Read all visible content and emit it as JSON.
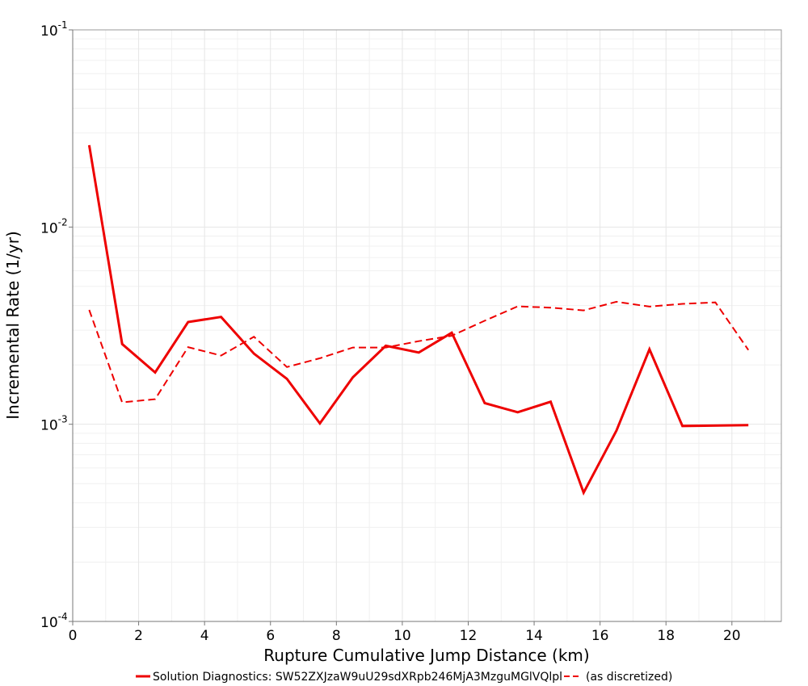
{
  "chart_data": {
    "type": "line",
    "title": "",
    "xlabel": "Rupture Cumulative Jump Distance (km)",
    "ylabel": "Incremental Rate (1/yr)",
    "xlim": [
      0,
      21.5
    ],
    "ylim": [
      0.0001,
      0.1
    ],
    "yscale": "log",
    "x_ticks": [
      "0",
      "2",
      "4",
      "6",
      "8",
      "10",
      "12",
      "14",
      "16",
      "18",
      "20"
    ],
    "y_ticks": [
      {
        "base": "10",
        "exp": "-4"
      },
      {
        "base": "10",
        "exp": "-3"
      },
      {
        "base": "10",
        "exp": "-2"
      },
      {
        "base": "10",
        "exp": "-1"
      }
    ],
    "grid": true,
    "legend_position": "bottom",
    "x": [
      0.5,
      1.5,
      2.5,
      3.5,
      4.5,
      5.5,
      6.5,
      7.5,
      8.5,
      9.5,
      10.5,
      11.5,
      12.5,
      13.5,
      14.5,
      15.5,
      16.5,
      17.5,
      18.5,
      19.5,
      20.5
    ],
    "series": [
      {
        "name": "Solution Diagnostics: SW52ZXJzaW9uU29sdXRpb246MjA3MzguMGlVQlpl",
        "style": "solid",
        "color": "#ee0000",
        "values": [
          0.026,
          0.00255,
          0.00183,
          0.0033,
          0.0035,
          0.00228,
          0.0017,
          0.00101,
          0.00173,
          0.0025,
          0.00231,
          0.00291,
          0.00128,
          0.00115,
          0.0013,
          0.00045,
          0.00093,
          0.0024,
          0.00098,
          null,
          0.00099
        ]
      },
      {
        "name": "(as discretized)",
        "style": "dashed",
        "color": "#ee0000",
        "values": [
          0.0038,
          0.00129,
          0.00134,
          0.00246,
          0.00223,
          0.00278,
          0.00195,
          0.00216,
          0.00245,
          0.00245,
          0.00264,
          0.00281,
          0.00335,
          0.00396,
          0.0039,
          0.00378,
          0.00418,
          0.00395,
          0.00408,
          0.00415,
          0.00238
        ]
      }
    ]
  }
}
